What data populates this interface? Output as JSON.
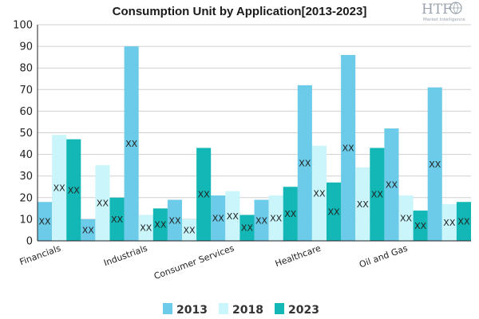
{
  "logo": {
    "text": "HTF",
    "tagline": "Market Intelligence"
  },
  "chart_data": {
    "type": "bar",
    "title": "Consumption Unit by  Application[2013-2023]",
    "xlabel": "",
    "ylabel": "",
    "ylim": [
      0,
      100
    ],
    "yticks": [
      0,
      10,
      20,
      30,
      40,
      50,
      60,
      70,
      80,
      90,
      100
    ],
    "grid": "horizontal",
    "legend": "bottom",
    "colors": [
      "#6ccbe8",
      "#c9f5fb",
      "#13b8b6"
    ],
    "data_label_text": "XX",
    "categories": [
      "Financials",
      "",
      "Industrials",
      "",
      "Consumer Services",
      "",
      "Healthcare",
      "",
      "Oil and Gas",
      ""
    ],
    "series": [
      {
        "name": "2013",
        "values": [
          18,
          10,
          90,
          19,
          21,
          19,
          72,
          86,
          52,
          71
        ]
      },
      {
        "name": "2018",
        "values": [
          49,
          35,
          12,
          10,
          23,
          21,
          44,
          34,
          21,
          17
        ]
      },
      {
        "name": "2023",
        "values": [
          47,
          20,
          15,
          43,
          12,
          25,
          27,
          43,
          14,
          18
        ]
      }
    ]
  }
}
